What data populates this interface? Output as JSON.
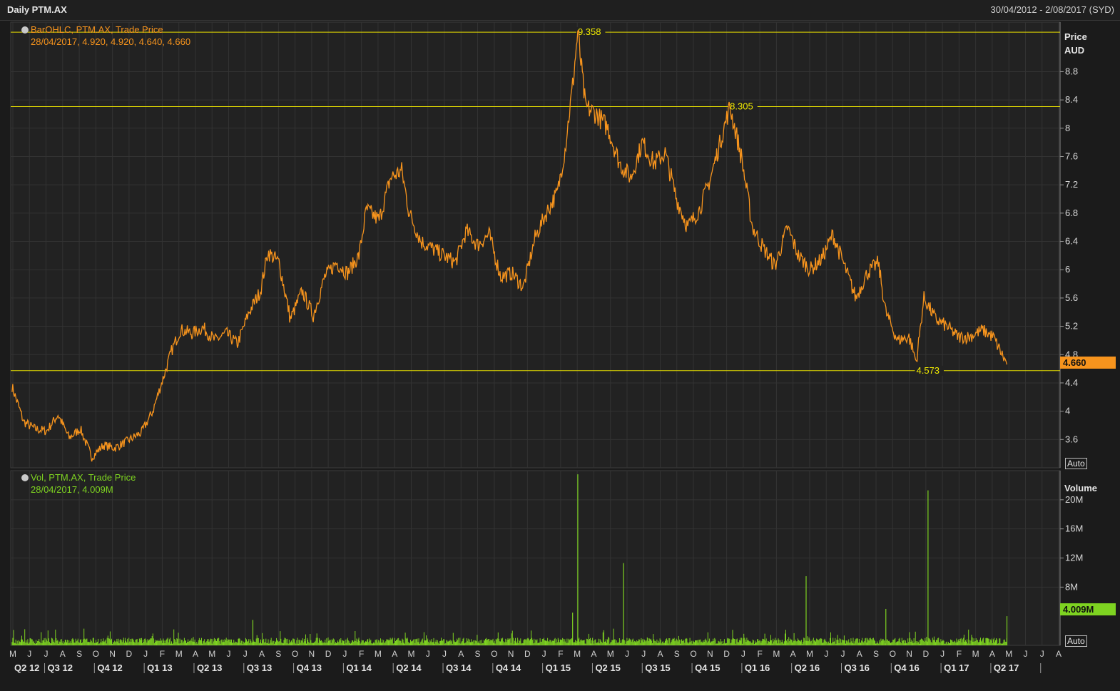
{
  "header": {
    "title": "Daily PTM.AX",
    "date_range": "30/04/2012 - 2/08/2017 (SYD)"
  },
  "price_panel": {
    "legend_line1": "BarOHLC, PTM.AX, Trade Price",
    "legend_line2": "28/04/2017, 4.920, 4.920, 4.640, 4.660",
    "axis_title": "Price",
    "axis_unit": "AUD",
    "last_value": "4.660",
    "auto_label": "Auto",
    "color": "#f7941d"
  },
  "volume_panel": {
    "legend_line1": "Vol, PTM.AX, Trade Price",
    "legend_line2": "28/04/2017, 4.009M",
    "axis_title": "Volume",
    "last_value": "4.009M",
    "auto_label": "Auto",
    "color": "#7ed321"
  },
  "chart_data": [
    {
      "type": "line",
      "name": "BarOHLC, PTM.AX, Trade Price",
      "x_start": "2012-04-30",
      "ylim": [
        3.2,
        9.5
      ],
      "y_ticks": [
        "8.8",
        "8.4",
        "8",
        "7.6",
        "7.2",
        "6.8",
        "6.4",
        "6",
        "5.6",
        "5.2",
        "4.8",
        "4.4",
        "4",
        "3.6"
      ],
      "grid": true,
      "reference_lines": [
        {
          "label": "9.358",
          "value": 9.358,
          "x": "2015-03-02"
        },
        {
          "label": "8.305",
          "value": 8.305,
          "x": "2015-12-07"
        },
        {
          "label": "4.573",
          "value": 4.573,
          "x": "2016-11-14"
        }
      ],
      "points": [
        [
          "2012-04-30",
          4.35
        ],
        [
          "2012-05-21",
          3.85
        ],
        [
          "2012-06-11",
          3.75
        ],
        [
          "2012-07-02",
          3.72
        ],
        [
          "2012-07-23",
          3.95
        ],
        [
          "2012-08-13",
          3.62
        ],
        [
          "2012-09-03",
          3.75
        ],
        [
          "2012-09-24",
          3.35
        ],
        [
          "2012-10-15",
          3.52
        ],
        [
          "2012-11-05",
          3.48
        ],
        [
          "2012-12-03",
          3.6
        ],
        [
          "2012-12-24",
          3.7
        ],
        [
          "2013-01-14",
          4.0
        ],
        [
          "2013-02-04",
          4.5
        ],
        [
          "2013-02-18",
          4.85
        ],
        [
          "2013-03-04",
          5.15
        ],
        [
          "2013-03-25",
          5.1
        ],
        [
          "2013-04-15",
          5.18
        ],
        [
          "2013-05-06",
          5.0
        ],
        [
          "2013-05-27",
          5.1
        ],
        [
          "2013-06-17",
          4.95
        ],
        [
          "2013-07-08",
          5.4
        ],
        [
          "2013-07-29",
          5.7
        ],
        [
          "2013-08-12",
          6.25
        ],
        [
          "2013-09-02",
          6.1
        ],
        [
          "2013-09-23",
          5.3
        ],
        [
          "2013-10-14",
          5.7
        ],
        [
          "2013-11-04",
          5.35
        ],
        [
          "2013-11-25",
          5.9
        ],
        [
          "2013-12-16",
          6.1
        ],
        [
          "2014-01-06",
          5.95
        ],
        [
          "2014-01-27",
          6.2
        ],
        [
          "2014-02-10",
          6.85
        ],
        [
          "2014-03-03",
          6.7
        ],
        [
          "2014-03-24",
          7.3
        ],
        [
          "2014-04-14",
          7.4
        ],
        [
          "2014-04-28",
          6.8
        ],
        [
          "2014-05-19",
          6.4
        ],
        [
          "2014-06-09",
          6.3
        ],
        [
          "2014-06-30",
          6.2
        ],
        [
          "2014-07-21",
          6.1
        ],
        [
          "2014-08-11",
          6.55
        ],
        [
          "2014-09-01",
          6.35
        ],
        [
          "2014-09-22",
          6.5
        ],
        [
          "2014-10-13",
          5.9
        ],
        [
          "2014-11-03",
          5.95
        ],
        [
          "2014-11-24",
          5.75
        ],
        [
          "2014-12-15",
          6.45
        ],
        [
          "2015-01-05",
          6.8
        ],
        [
          "2015-01-26",
          7.1
        ],
        [
          "2015-02-09",
          7.7
        ],
        [
          "2015-02-23",
          8.6
        ],
        [
          "2015-03-02",
          9.358
        ],
        [
          "2015-03-16",
          8.3
        ],
        [
          "2015-04-06",
          8.2
        ],
        [
          "2015-04-27",
          8.0
        ],
        [
          "2015-05-18",
          7.5
        ],
        [
          "2015-06-08",
          7.3
        ],
        [
          "2015-06-29",
          7.8
        ],
        [
          "2015-07-20",
          7.5
        ],
        [
          "2015-08-10",
          7.65
        ],
        [
          "2015-08-31",
          7.0
        ],
        [
          "2015-09-21",
          6.6
        ],
        [
          "2015-10-12",
          6.85
        ],
        [
          "2015-11-02",
          7.3
        ],
        [
          "2015-11-23",
          7.9
        ],
        [
          "2015-12-07",
          8.305
        ],
        [
          "2015-12-28",
          7.6
        ],
        [
          "2016-01-18",
          6.6
        ],
        [
          "2016-02-08",
          6.3
        ],
        [
          "2016-02-29",
          6.05
        ],
        [
          "2016-03-21",
          6.6
        ],
        [
          "2016-04-11",
          6.2
        ],
        [
          "2016-05-02",
          6.0
        ],
        [
          "2016-05-23",
          6.15
        ],
        [
          "2016-06-13",
          6.5
        ],
        [
          "2016-07-04",
          6.05
        ],
        [
          "2016-07-25",
          5.6
        ],
        [
          "2016-08-15",
          5.95
        ],
        [
          "2016-09-05",
          6.1
        ],
        [
          "2016-09-19",
          5.4
        ],
        [
          "2016-10-10",
          5.0
        ],
        [
          "2016-10-31",
          5.05
        ],
        [
          "2016-11-14",
          4.7
        ],
        [
          "2016-11-28",
          5.6
        ],
        [
          "2016-12-19",
          5.3
        ],
        [
          "2017-01-09",
          5.2
        ],
        [
          "2017-01-30",
          5.05
        ],
        [
          "2017-02-20",
          5.05
        ],
        [
          "2017-03-13",
          5.15
        ],
        [
          "2017-04-03",
          5.05
        ],
        [
          "2017-04-28",
          4.66
        ]
      ]
    },
    {
      "type": "bar",
      "name": "Vol, PTM.AX, Trade Price",
      "unit": "M",
      "ylim": [
        0,
        24
      ],
      "y_ticks": [
        "20M",
        "16M",
        "12M",
        "8M"
      ],
      "grid": true,
      "baseline": 0.6,
      "spikes": [
        {
          "date": "2013-07-15",
          "value": 3.5
        },
        {
          "date": "2015-02-23",
          "value": 4.5
        },
        {
          "date": "2015-03-02",
          "value": 23.5
        },
        {
          "date": "2015-05-25",
          "value": 11.3
        },
        {
          "date": "2016-04-25",
          "value": 9.5
        },
        {
          "date": "2016-09-19",
          "value": 5.0
        },
        {
          "date": "2016-12-05",
          "value": 21.3
        },
        {
          "date": "2017-04-28",
          "value": 4.009
        }
      ]
    }
  ],
  "x_axis": {
    "months": [
      "M",
      "J",
      "J",
      "A",
      "S",
      "O",
      "N",
      "D",
      "J",
      "F",
      "M",
      "A",
      "M",
      "J",
      "J",
      "A",
      "S",
      "O",
      "N",
      "D",
      "J",
      "F",
      "M",
      "A",
      "M",
      "J",
      "J",
      "A",
      "S",
      "O",
      "N",
      "D",
      "J",
      "F",
      "M",
      "A",
      "M",
      "J",
      "J",
      "A",
      "S",
      "O",
      "N",
      "D",
      "J",
      "F",
      "M",
      "A",
      "M",
      "J",
      "J",
      "A",
      "S",
      "O",
      "N",
      "D",
      "J",
      "F",
      "M",
      "A",
      "M",
      "J",
      "J",
      "A"
    ],
    "quarters": [
      "Q2 12",
      "Q3 12",
      "Q4 12",
      "Q1 13",
      "Q2 13",
      "Q3 13",
      "Q4 13",
      "Q1 14",
      "Q2 14",
      "Q3 14",
      "Q4 14",
      "Q1 15",
      "Q2 15",
      "Q3 15",
      "Q4 15",
      "Q1 16",
      "Q2 16",
      "Q3 16",
      "Q4 16",
      "Q1 17",
      "Q2 17"
    ]
  }
}
